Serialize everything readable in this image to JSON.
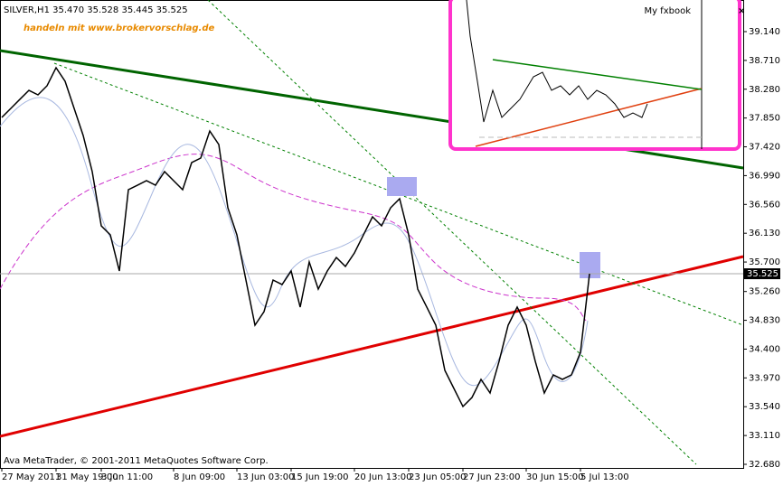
{
  "chart_data": {
    "type": "line",
    "title": "SILVER,H1  35.470 35.528 35.445 35.525",
    "subtitle": "handeln mit www.brokervorschlag.de",
    "annotation": "Ava MetaTrader, © 2001-2011 MetaQuotes Software Corp.",
    "categories": [
      "27 May 2011",
      null,
      null,
      null,
      null,
      null,
      "31 May 19:00",
      null,
      null,
      null,
      null,
      "3 Jun 11:00",
      null,
      null,
      null,
      null,
      null,
      null,
      null,
      "8 Jun 09:00",
      null,
      null,
      null,
      null,
      null,
      null,
      "13 Jun 03:00",
      null,
      null,
      null,
      null,
      null,
      "15 Jun 19:00",
      null,
      null,
      null,
      null,
      null,
      null,
      "20 Jun 13:00",
      null,
      null,
      null,
      null,
      null,
      "23 Jun 05:00",
      null,
      null,
      null,
      null,
      null,
      "27 Jun 23:00",
      null,
      null,
      null,
      null,
      null,
      null,
      "30 Jun 15:00",
      null,
      null,
      null,
      null,
      null,
      "5 Jul 13:00",
      null
    ],
    "series": [
      {
        "name": "SILVER,H1",
        "color": "#000000",
        "values": [
          37.859,
          37.994,
          38.129,
          38.263,
          38.196,
          38.331,
          38.601,
          38.398,
          37.994,
          37.589,
          37.05,
          36.24,
          36.106,
          35.566,
          36.78,
          36.847,
          36.915,
          36.847,
          37.05,
          36.915,
          36.78,
          37.185,
          37.252,
          37.656,
          37.454,
          36.51,
          36.106,
          35.431,
          34.757,
          34.959,
          35.431,
          35.364,
          35.566,
          35.027,
          35.701,
          35.296,
          35.566,
          35.768,
          35.634,
          35.836,
          36.106,
          36.375,
          36.24,
          36.51,
          36.645,
          36.106,
          35.296,
          35.027,
          34.757,
          34.083,
          33.813,
          33.543,
          33.678,
          33.948,
          33.745,
          34.218,
          34.757,
          35.027,
          34.757,
          34.218,
          33.745,
          34.015,
          33.948,
          34.015,
          34.352,
          35.525
        ]
      }
    ],
    "last_price": {
      "value": 35.525,
      "label": "35.525"
    },
    "ylim": [
      32.626,
      39.612
    ],
    "yticks": [
      {
        "value": 39.14,
        "label": "39.140"
      },
      {
        "value": 38.71,
        "label": "38.710"
      },
      {
        "value": 38.28,
        "label": "38.280"
      },
      {
        "value": 37.85,
        "label": "37.850"
      },
      {
        "value": 37.42,
        "label": "37.420"
      },
      {
        "value": 36.99,
        "label": "36.990"
      },
      {
        "value": 36.56,
        "label": "36.560"
      },
      {
        "value": 36.13,
        "label": "36.130"
      },
      {
        "value": 35.7,
        "label": "35.700"
      },
      {
        "value": 35.26,
        "label": "35.260"
      },
      {
        "value": 34.83,
        "label": "34.830"
      },
      {
        "value": 34.4,
        "label": "34.400"
      },
      {
        "value": 33.97,
        "label": "33.970"
      },
      {
        "value": 33.54,
        "label": "33.540"
      },
      {
        "value": 33.11,
        "label": "33.110"
      },
      {
        "value": 32.68,
        "label": "32.680"
      }
    ],
    "grid": false,
    "inset_label": "My fxbook"
  }
}
